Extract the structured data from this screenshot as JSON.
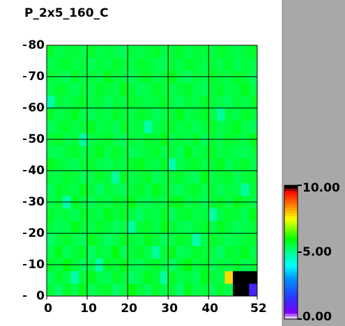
{
  "chart_data": {
    "type": "heatmap",
    "title": "P_2x5_160_C",
    "xbins": [
      0,
      2,
      4,
      6,
      8,
      10,
      12,
      14,
      16,
      18,
      20,
      22,
      24,
      26,
      28,
      30,
      32,
      34,
      36,
      38,
      40,
      42,
      44,
      46,
      48,
      50,
      52
    ],
    "ybins": [
      0,
      4,
      8,
      12,
      16,
      20,
      24,
      28,
      32,
      36,
      40,
      44,
      48,
      52,
      56,
      60,
      64,
      68,
      72,
      76,
      80
    ],
    "xlim": [
      0,
      52
    ],
    "ylim": [
      0,
      80
    ],
    "xticks": [
      0,
      10,
      20,
      30,
      40,
      52
    ],
    "yticks": [
      0,
      10,
      20,
      30,
      40,
      50,
      60,
      70,
      80
    ],
    "grid": true,
    "z": [
      [
        5.6,
        5.3,
        5.7,
        5.5,
        5.8,
        5.4,
        5.6,
        5.7,
        5.3,
        5.5,
        5.9,
        5.6,
        5.4,
        5.7,
        5.5,
        5.6,
        5.3,
        5.8,
        5.5,
        5.6,
        5.4,
        5.7,
        5.5,
        12,
        12,
        1.2
      ],
      [
        5.4,
        5.7,
        5.5,
        4.8,
        5.6,
        5.8,
        5.5,
        5.4,
        5.7,
        5.6,
        5.3,
        5.5,
        5.8,
        5.6,
        4.9,
        5.7,
        5.5,
        5.6,
        5.4,
        5.8,
        5.6,
        5.5,
        7.8,
        12,
        12,
        12
      ],
      [
        5.7,
        5.5,
        5.9,
        5.6,
        5.4,
        5.5,
        4.8,
        5.7,
        5.6,
        5.8,
        5.5,
        5.4,
        5.6,
        5.7,
        5.5,
        5.3,
        5.6,
        5.9,
        5.5,
        5.7,
        5.4,
        5.6,
        5.5,
        5.7,
        5.4,
        5.6
      ],
      [
        5.5,
        5.8,
        5.4,
        5.6,
        5.7,
        5.3,
        5.6,
        5.5,
        5.9,
        5.4,
        5.6,
        5.7,
        5.5,
        4.9,
        5.6,
        5.8,
        5.4,
        5.5,
        5.7,
        5.6,
        5.5,
        5.3,
        5.7,
        5.6,
        5.8,
        5.5
      ],
      [
        5.3,
        5.6,
        5.7,
        5.5,
        5.4,
        5.8,
        5.6,
        5.3,
        5.5,
        5.7,
        5.6,
        5.5,
        5.8,
        5.6,
        5.4,
        5.5,
        5.7,
        5.6,
        4.8,
        5.5,
        5.7,
        5.6,
        5.4,
        5.5,
        5.6,
        5.7
      ],
      [
        5.6,
        5.4,
        5.5,
        5.8,
        5.6,
        5.5,
        5.7,
        5.6,
        5.4,
        5.5,
        4.9,
        5.6,
        5.7,
        5.5,
        5.8,
        5.6,
        5.5,
        5.4,
        5.6,
        5.7,
        5.5,
        5.8,
        5.6,
        5.4,
        5.5,
        5.6
      ],
      [
        5.7,
        5.5,
        5.6,
        5.4,
        5.7,
        5.6,
        5.5,
        5.8,
        5.6,
        5.7,
        5.5,
        5.3,
        5.6,
        5.5,
        5.7,
        5.4,
        5.6,
        5.7,
        5.5,
        5.6,
        4.8,
        5.5,
        5.7,
        5.6,
        5.4,
        5.8
      ],
      [
        5.5,
        5.6,
        4.8,
        5.7,
        5.5,
        5.4,
        5.6,
        5.5,
        5.7,
        5.6,
        5.8,
        5.5,
        5.4,
        5.6,
        5.5,
        5.7,
        5.8,
        5.5,
        5.6,
        5.4,
        5.6,
        5.7,
        5.5,
        5.8,
        5.6,
        5.5
      ],
      [
        5.4,
        5.7,
        5.6,
        5.5,
        5.8,
        5.6,
        5.3,
        5.6,
        5.5,
        5.4,
        5.6,
        5.7,
        5.5,
        5.8,
        5.6,
        5.5,
        5.4,
        5.6,
        5.7,
        5.5,
        5.6,
        5.4,
        5.6,
        5.5,
        4.9,
        5.6
      ],
      [
        5.6,
        5.5,
        5.7,
        5.6,
        5.4,
        5.5,
        5.7,
        5.6,
        4.9,
        5.7,
        5.5,
        5.6,
        5.7,
        5.4,
        5.5,
        5.6,
        5.7,
        5.5,
        5.4,
        5.8,
        5.5,
        5.6,
        5.7,
        5.4,
        5.6,
        5.7
      ],
      [
        5.8,
        5.6,
        5.5,
        5.4,
        5.6,
        5.7,
        5.5,
        5.4,
        5.6,
        5.5,
        5.7,
        5.8,
        5.6,
        5.5,
        5.7,
        4.8,
        5.5,
        5.6,
        5.7,
        5.5,
        5.6,
        5.8,
        5.4,
        5.6,
        5.7,
        5.5
      ],
      [
        5.5,
        5.4,
        5.6,
        5.7,
        5.5,
        5.6,
        5.8,
        5.5,
        5.7,
        5.6,
        5.4,
        5.5,
        5.6,
        5.7,
        5.5,
        5.6,
        5.4,
        5.8,
        5.5,
        5.6,
        5.7,
        5.5,
        5.6,
        5.5,
        5.4,
        5.6
      ],
      [
        5.6,
        5.7,
        5.5,
        5.6,
        4.9,
        5.5,
        5.6,
        5.7,
        5.5,
        5.4,
        5.6,
        5.5,
        5.7,
        5.6,
        5.8,
        5.5,
        5.6,
        5.5,
        5.7,
        5.4,
        5.6,
        5.5,
        5.7,
        5.6,
        5.5,
        5.8
      ],
      [
        5.4,
        5.6,
        5.7,
        5.5,
        5.6,
        5.8,
        5.5,
        5.6,
        5.4,
        5.7,
        5.5,
        5.6,
        4.8,
        5.5,
        5.6,
        5.7,
        5.5,
        5.6,
        5.4,
        5.6,
        5.7,
        5.5,
        5.6,
        5.8,
        5.5,
        5.4
      ],
      [
        5.7,
        5.5,
        5.6,
        5.8,
        5.5,
        5.4,
        5.6,
        5.5,
        5.7,
        5.6,
        5.5,
        5.7,
        5.6,
        5.4,
        5.5,
        5.6,
        5.8,
        5.5,
        5.6,
        5.7,
        5.5,
        4.9,
        5.6,
        5.5,
        5.7,
        5.6
      ],
      [
        4.8,
        5.6,
        5.5,
        5.6,
        5.7,
        5.5,
        5.6,
        5.4,
        5.6,
        5.5,
        5.7,
        5.6,
        5.5,
        5.6,
        5.7,
        5.5,
        5.4,
        5.6,
        5.5,
        5.7,
        5.6,
        5.5,
        5.4,
        5.6,
        5.5,
        5.7
      ],
      [
        5.5,
        5.7,
        5.6,
        5.4,
        5.6,
        5.5,
        5.7,
        5.6,
        5.5,
        5.8,
        5.6,
        5.4,
        5.5,
        5.7,
        5.6,
        5.5,
        5.6,
        5.7,
        5.5,
        5.4,
        5.6,
        5.7,
        5.5,
        5.6,
        5.8,
        5.5
      ],
      [
        5.6,
        5.5,
        5.4,
        5.7,
        5.5,
        5.6,
        5.5,
        5.8,
        5.6,
        5.5,
        5.4,
        5.6,
        5.7,
        5.5,
        5.6,
        5.8,
        5.5,
        5.4,
        5.6,
        5.5,
        5.7,
        5.6,
        5.5,
        5.7,
        5.6,
        5.4
      ],
      [
        5.5,
        5.6,
        5.7,
        5.5,
        5.6,
        5.4,
        5.6,
        5.5,
        5.7,
        5.6,
        5.5,
        5.7,
        5.6,
        5.5,
        5.4,
        5.6,
        5.5,
        5.7,
        5.6,
        5.5,
        5.6,
        5.5,
        5.7,
        5.4,
        5.6,
        5.5
      ],
      [
        5.7,
        5.5,
        5.6,
        5.6,
        5.5,
        5.7,
        5.5,
        5.6,
        5.5,
        5.4,
        5.6,
        5.5,
        5.6,
        5.7,
        5.5,
        5.6,
        5.7,
        5.5,
        5.6,
        5.6,
        5.5,
        5.7,
        5.6,
        5.5,
        5.6,
        5.7
      ]
    ],
    "colorscale": [
      [
        0,
        "#ffffff"
      ],
      [
        0.5,
        "#8000ff"
      ],
      [
        1.5,
        "#3030ff"
      ],
      [
        3,
        "#0090ff"
      ],
      [
        4,
        "#00ffff"
      ],
      [
        5,
        "#00ff90"
      ],
      [
        6,
        "#00ff00"
      ],
      [
        7.5,
        "#ffff00"
      ],
      [
        8.5,
        "#ff8000"
      ],
      [
        9.6,
        "#ff0000"
      ],
      [
        9.8,
        "#000000"
      ],
      [
        10,
        "#000000"
      ]
    ],
    "colorbar_ticks": [
      {
        "value": 0,
        "label": "0.00"
      },
      {
        "value": 5,
        "label": "5.00"
      },
      {
        "value": 10,
        "label": "10.00"
      }
    ]
  }
}
